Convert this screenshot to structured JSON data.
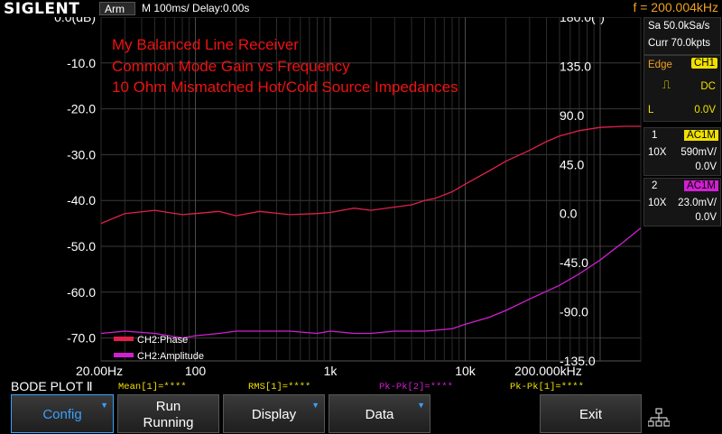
{
  "header": {
    "brand": "SIGLENT",
    "status": "Arm",
    "timebase": "M 100ms/",
    "delay": "Delay:0.00s",
    "frequency": "f = 200.004kHz"
  },
  "plot": {
    "annotation": {
      "line1": "My Balanced Line Receiver",
      "line2": "Common Mode Gain vs Frequency",
      "line3": "10 Ohm Mismatched Hot/Cold Source Impedances"
    },
    "left_axis_ticks": [
      "0.0(dB)",
      "-10.0",
      "-20.0",
      "-30.0",
      "-40.0",
      "-50.0",
      "-60.0",
      "-70.0"
    ],
    "right_axis_ticks": [
      "180.0(°)",
      "135.0",
      "90.0",
      "45.0",
      "0.0",
      "-45.0",
      "-90.0",
      "-135.0"
    ],
    "x_axis_ticks": [
      "20.00Hz",
      "100",
      "1k",
      "10k",
      "200.000kHz"
    ],
    "legend": [
      {
        "name": "CH2:Phase",
        "color": "#e0204a"
      },
      {
        "name": "CH2:Amplitude",
        "color": "#d020d0"
      }
    ]
  },
  "chart_data": {
    "type": "line",
    "x_scale": "log",
    "x_range_hz": [
      20,
      200000
    ],
    "y_left_range_db": [
      -75,
      0
    ],
    "y_right_range_deg": [
      -135,
      180
    ],
    "grid": true,
    "legend_position": "bottom-left",
    "series": [
      {
        "name": "CH2:Phase",
        "axis": "right",
        "color": "#e0204a",
        "x": [
          20,
          30,
          50,
          80,
          100,
          150,
          200,
          300,
          500,
          800,
          1000,
          1500,
          2000,
          3000,
          4000,
          5000,
          6000,
          8000,
          10000,
          15000,
          20000,
          30000,
          40000,
          50000,
          70000,
          100000,
          150000,
          200000
        ],
        "y": [
          -9,
          0,
          3,
          -1,
          0,
          2,
          -2,
          2,
          -1,
          0,
          1,
          5,
          3,
          6,
          8,
          12,
          14,
          20,
          27,
          39,
          48,
          58,
          66,
          71,
          76,
          79,
          80,
          80
        ]
      },
      {
        "name": "CH2:Amplitude",
        "axis": "left",
        "color": "#d020d0",
        "x": [
          20,
          30,
          50,
          80,
          100,
          150,
          200,
          300,
          500,
          800,
          1000,
          1500,
          2000,
          3000,
          5000,
          8000,
          10000,
          15000,
          20000,
          30000,
          50000,
          70000,
          100000,
          150000,
          200000
        ],
        "y": [
          -69,
          -68.5,
          -69,
          -70,
          -69.5,
          -69,
          -68.5,
          -68.5,
          -68.5,
          -69,
          -68.5,
          -69,
          -69,
          -68.5,
          -68.5,
          -68,
          -67,
          -65.5,
          -64,
          -61.5,
          -58.5,
          -56,
          -53,
          -49,
          -46
        ]
      }
    ]
  },
  "panel": {
    "sample_rate": "Sa 50.0kSa/s",
    "memory": "Curr 70.0kpts",
    "trigger": {
      "type": "Edge",
      "source": "CH1",
      "coupling": "DC",
      "level_label": "L",
      "level": "0.0V"
    },
    "ch1": {
      "number": "1",
      "coupling": "AC1M",
      "probe": "10X",
      "scale": "590mV/",
      "offset": "0.0V",
      "color": "#f0e000"
    },
    "ch2": {
      "number": "2",
      "coupling": "AC1M",
      "probe": "10X",
      "scale": "23.0mV/",
      "offset": "0.0V",
      "color": "#d020d0"
    }
  },
  "footer": {
    "mode": "BODE PLOT Ⅱ",
    "measurements": [
      "Mean[1]=****",
      "RMS[1]=****",
      "Pk-Pk[2]=****",
      "Pk-Pk[1]=****"
    ]
  },
  "softkeys": {
    "config": "Config",
    "run_line1": "Run",
    "run_line2": "Running",
    "display": "Display",
    "data": "Data",
    "exit": "Exit"
  }
}
